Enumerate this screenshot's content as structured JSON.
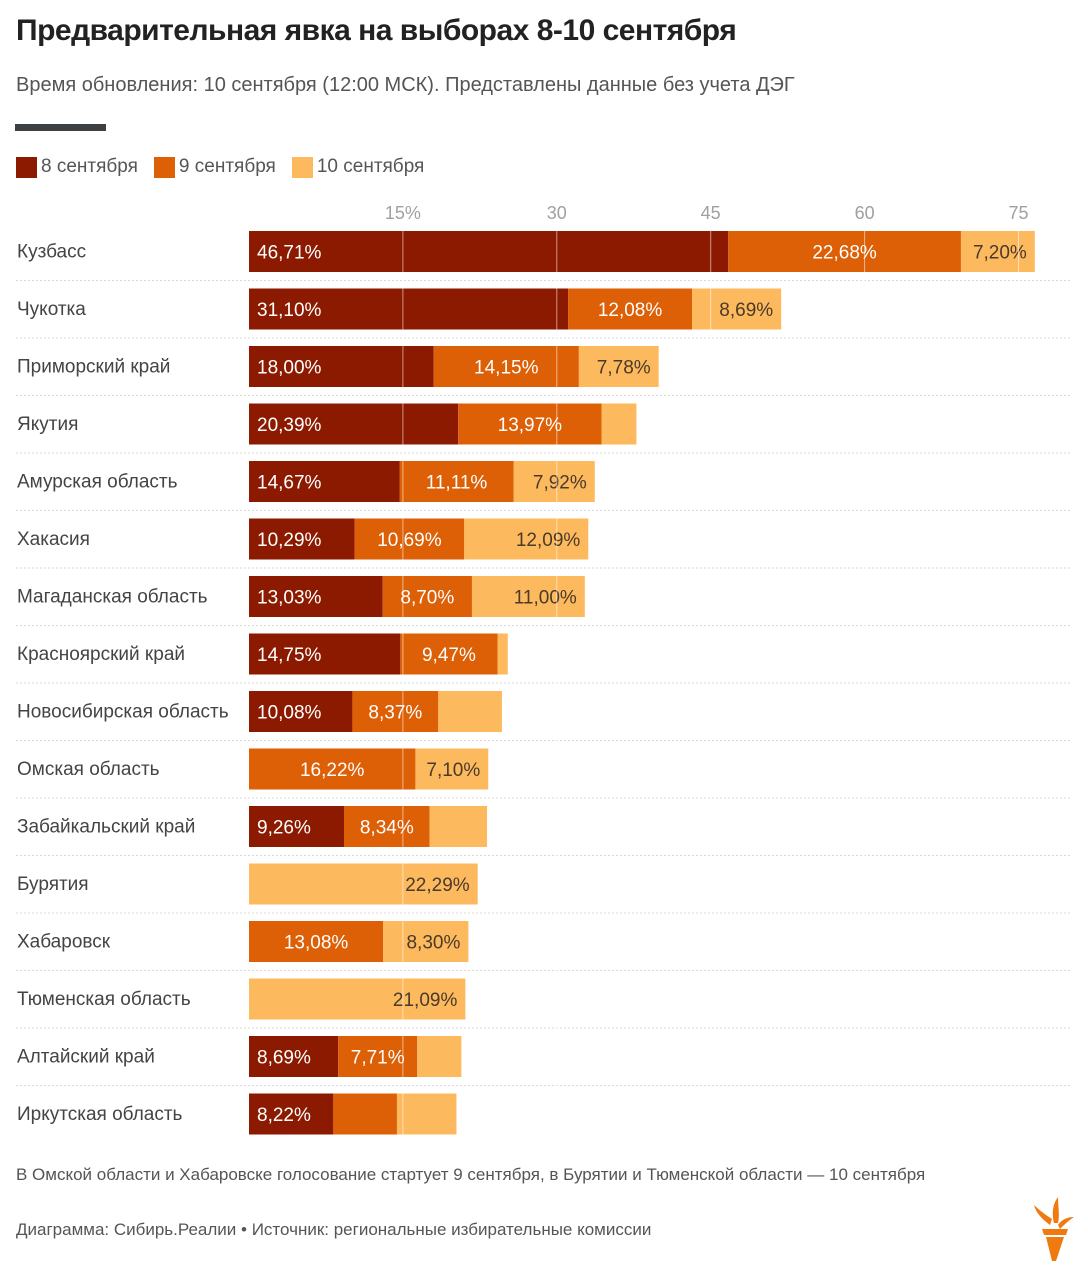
{
  "header": {
    "title": "Предварительная явка на выборах 8-10 сентября",
    "subtitle": "Время обновления: 10 сентября (12:00 МСК). Представлены данные без учета ДЭГ"
  },
  "footer": {
    "note": "В Омской области и Хабаровске голосование стартует 9 сентября, в Бурятии и Тюменской области — 10 сентября",
    "source": "Диаграмма: Сибирь.Реалии • Источник: региональные избирательные комиссии",
    "logo_icon": "torch-logo-icon"
  },
  "colors": {
    "sep8": "#8b1a00",
    "sep9": "#dd5f06",
    "sep10": "#fdb95d"
  },
  "chart_data": {
    "type": "bar",
    "orientation": "horizontal",
    "stacked": true,
    "title": "Предварительная явка на выборах 8-10 сентября",
    "xlabel": "",
    "ylabel": "",
    "xlim": [
      0,
      78
    ],
    "xticks": [
      15,
      30,
      45,
      60,
      75
    ],
    "xtick_labels": [
      "15%",
      "30",
      "45",
      "60",
      "75"
    ],
    "grid": true,
    "legend_position": "top-left",
    "categories": [
      "Кузбасс",
      "Чукотка",
      "Приморский край",
      "Якутия",
      "Амурская область",
      "Хакасия",
      "Магаданская область",
      "Красноярский край",
      "Новосибирская область",
      "Омская область",
      "Забайкальский край",
      "Бурятия",
      "Хабаровск",
      "Тюменская область",
      "Алтайский край",
      "Иркутская область"
    ],
    "series": [
      {
        "name": "8 сентября",
        "color": "#8b1a00",
        "values": [
          46.71,
          31.1,
          18.0,
          20.39,
          14.67,
          10.29,
          13.03,
          14.75,
          10.08,
          0,
          9.26,
          0,
          0,
          0,
          8.69,
          8.22
        ],
        "labels": [
          "46,71%",
          "31,10%",
          "18,00%",
          "20,39%",
          "14,67%",
          "10,29%",
          "13,03%",
          "14,75%",
          "10,08%",
          "",
          "9,26%",
          "",
          "",
          "",
          "8,69%",
          "8,22%"
        ]
      },
      {
        "name": "9 сентября",
        "color": "#dd5f06",
        "values": [
          22.68,
          12.08,
          14.15,
          13.97,
          11.11,
          10.69,
          8.7,
          9.47,
          8.37,
          16.22,
          8.34,
          0,
          13.08,
          0,
          7.71,
          6.2
        ],
        "labels": [
          "22,68%",
          "12,08%",
          "14,15%",
          "13,97%",
          "11,11%",
          "10,69%",
          "8,70%",
          "9,47%",
          "8,37%",
          "16,22%",
          "8,34%",
          "",
          "13,08%",
          "",
          "7,71%",
          ""
        ]
      },
      {
        "name": "10 сентября",
        "color": "#fdb95d",
        "values": [
          7.2,
          8.69,
          7.78,
          3.4,
          7.92,
          12.09,
          11.0,
          1.0,
          6.2,
          7.1,
          5.6,
          22.29,
          8.3,
          21.09,
          4.3,
          5.8
        ],
        "labels": [
          "7,20%",
          "8,69%",
          "7,78%",
          "",
          "7,92%",
          "12,09%",
          "11,00%",
          "",
          "",
          "7,10%",
          "",
          "22,29%",
          "8,30%",
          "21,09%",
          "",
          ""
        ]
      }
    ]
  }
}
